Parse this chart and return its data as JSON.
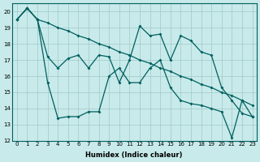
{
  "xlabel": "Humidex (Indice chaleur)",
  "bg_color": "#c8eaea",
  "grid_color": "#a0c8c8",
  "line_color": "#005f5f",
  "xlim_min": -0.5,
  "xlim_max": 23.4,
  "ylim_min": 12,
  "ylim_max": 20.5,
  "yticks": [
    12,
    13,
    14,
    15,
    16,
    17,
    18,
    19,
    20
  ],
  "xticks": [
    0,
    1,
    2,
    3,
    4,
    5,
    6,
    7,
    8,
    9,
    10,
    11,
    12,
    13,
    14,
    15,
    16,
    17,
    18,
    19,
    20,
    21,
    22,
    23
  ],
  "line1_x": [
    0,
    1,
    2,
    3,
    4,
    5,
    6,
    7,
    8,
    9,
    10,
    11,
    12,
    13,
    14,
    15,
    16,
    17,
    18,
    19,
    20,
    21,
    22,
    23
  ],
  "line1_y": [
    19.5,
    20.2,
    19.5,
    19.3,
    19.0,
    18.8,
    18.5,
    18.3,
    18.0,
    17.8,
    17.5,
    17.3,
    17.0,
    16.8,
    16.5,
    16.3,
    16.0,
    15.8,
    15.5,
    15.3,
    15.0,
    14.8,
    14.5,
    14.2
  ],
  "line2_x": [
    0,
    1,
    2,
    3,
    4,
    5,
    6,
    7,
    8,
    9,
    10,
    11,
    12,
    13,
    14,
    15,
    16,
    17,
    18,
    19,
    20,
    21,
    22,
    23
  ],
  "line2_y": [
    19.5,
    20.2,
    19.5,
    17.2,
    16.5,
    17.1,
    17.3,
    16.5,
    17.3,
    17.2,
    15.6,
    17.0,
    19.1,
    18.5,
    18.6,
    17.0,
    18.5,
    18.2,
    17.5,
    17.3,
    15.3,
    14.5,
    13.7,
    13.5
  ],
  "line3_x": [
    0,
    1,
    2,
    3,
    4,
    5,
    6,
    7,
    8,
    9,
    10,
    11,
    12,
    13,
    14,
    15,
    16,
    17,
    18,
    19,
    20,
    21,
    22,
    23
  ],
  "line3_y": [
    19.5,
    20.2,
    19.5,
    15.6,
    13.4,
    13.5,
    13.5,
    13.8,
    13.8,
    16.0,
    16.5,
    15.6,
    15.6,
    16.5,
    17.0,
    15.3,
    14.5,
    14.3,
    14.2,
    14.0,
    13.8,
    12.2,
    14.5,
    13.5
  ]
}
